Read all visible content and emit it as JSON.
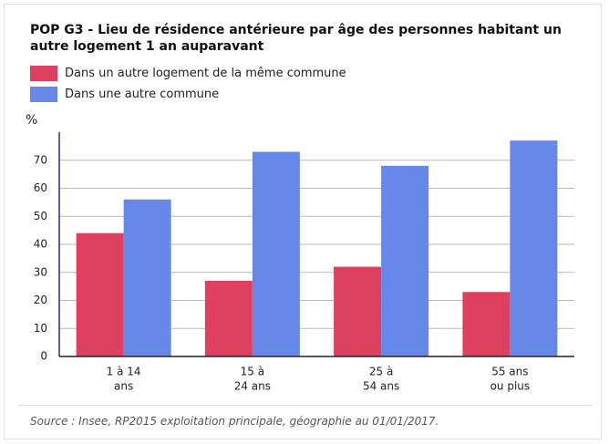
{
  "chart_data": {
    "type": "bar",
    "title": "POP G3 - Lieu de résidence antérieure par âge des personnes habitant un autre logement 1 an auparavant",
    "y_label": "%",
    "categories": [
      [
        "1 à 14",
        "ans"
      ],
      [
        "15 à",
        "24 ans"
      ],
      [
        "25 à",
        "54 ans"
      ],
      [
        "55 ans",
        "ou plus"
      ]
    ],
    "series": [
      {
        "name": "Dans un autre logement de la même commune",
        "color": "#e0405f",
        "values": [
          44,
          27,
          32,
          23
        ]
      },
      {
        "name": "Dans une autre commune",
        "color": "#6688e8",
        "values": [
          56,
          73,
          68,
          77
        ]
      }
    ],
    "ylim": [
      0,
      80
    ],
    "yticks": [
      0,
      10,
      20,
      30,
      40,
      50,
      60,
      70
    ],
    "grid": true,
    "source": "Source : Insee, RP2015 exploitation principale, géographie au 01/01/2017."
  }
}
